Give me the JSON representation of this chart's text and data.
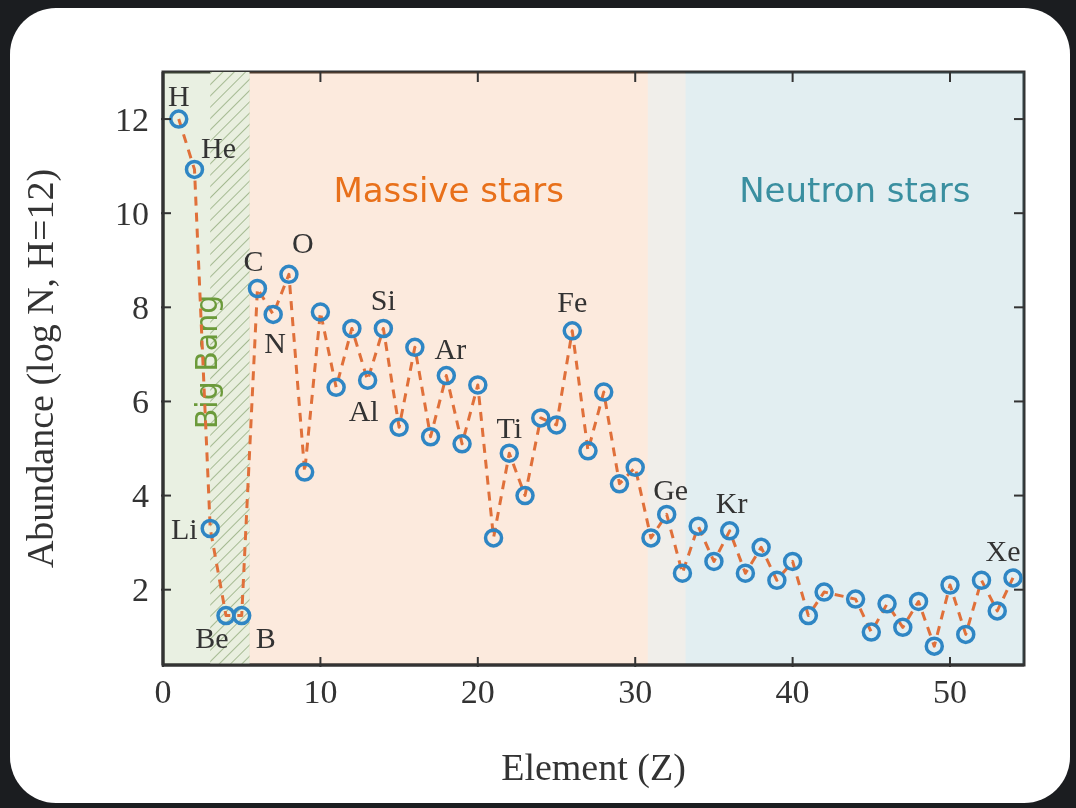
{
  "chart_data": {
    "type": "line",
    "xlabel": "Element (Z)",
    "ylabel": "Abundance (log N, H=12)",
    "x": [
      1,
      2,
      3,
      4,
      5,
      6,
      7,
      8,
      9,
      10,
      11,
      12,
      13,
      14,
      15,
      16,
      17,
      18,
      19,
      20,
      21,
      22,
      23,
      24,
      25,
      26,
      27,
      28,
      29,
      30,
      31,
      32,
      33,
      34,
      35,
      36,
      37,
      38,
      39,
      40,
      41,
      42,
      44,
      45,
      46,
      47,
      48,
      49,
      50,
      51,
      52,
      53,
      54
    ],
    "series": [
      {
        "type": "line",
        "color": "#e0703a",
        "line_style": "dashed",
        "marker": "none",
        "values": [
          12.0,
          10.93,
          3.3,
          1.45,
          1.45,
          8.4,
          7.85,
          8.7,
          4.5,
          7.9,
          6.3,
          7.55,
          6.45,
          7.55,
          5.45,
          7.15,
          5.25,
          6.55,
          5.1,
          6.35,
          3.1,
          4.9,
          4.0,
          5.65,
          5.5,
          7.5,
          4.95,
          6.2,
          4.25,
          4.6,
          3.1,
          3.6,
          2.35,
          3.35,
          2.6,
          3.25,
          2.35,
          2.9,
          2.2,
          2.6,
          1.45,
          1.95,
          1.8,
          1.1,
          1.7,
          1.2,
          1.75,
          0.8,
          2.1,
          1.05,
          2.2,
          1.55,
          2.25
        ]
      },
      {
        "type": "scatter",
        "color": "#2f86c4",
        "marker": "circle",
        "values": [
          12.0,
          10.93,
          3.3,
          1.45,
          1.45,
          8.4,
          7.85,
          8.7,
          4.5,
          7.9,
          6.3,
          7.55,
          6.45,
          7.55,
          5.45,
          7.15,
          5.25,
          6.55,
          5.1,
          6.35,
          3.1,
          4.9,
          4.0,
          5.65,
          5.5,
          7.5,
          4.95,
          6.2,
          4.25,
          4.6,
          3.1,
          3.6,
          2.35,
          3.35,
          2.6,
          3.25,
          2.35,
          2.9,
          2.2,
          2.6,
          1.45,
          1.95,
          1.8,
          1.1,
          1.7,
          1.2,
          1.75,
          0.8,
          2.1,
          1.05,
          2.2,
          1.55,
          2.25
        ]
      }
    ],
    "xlim": [
      0,
      54.7
    ],
    "xticks": [
      0,
      10,
      20,
      30,
      40,
      50
    ],
    "ylim": [
      0.4,
      13
    ],
    "yticks": [
      2,
      4,
      6,
      8,
      10,
      12
    ],
    "grid": false,
    "legend": false,
    "bands": [
      {
        "axis": "x",
        "from": 0,
        "to": 5.5,
        "label": "Big Bang",
        "color": "#6b9a3a"
      },
      {
        "axis": "x",
        "from": 3,
        "to": 5.5,
        "color": "#8fa878"
      },
      {
        "axis": "x",
        "from": 5.5,
        "to": 30.8,
        "label": "Massive stars",
        "color": "#e8701a"
      },
      {
        "axis": "x",
        "from": 30.8,
        "to": 33.2,
        "color": "#9c8a70"
      },
      {
        "axis": "x",
        "from": 33.2,
        "to": 54.7,
        "label": "Neutron stars",
        "color": "#3a8fa0"
      }
    ],
    "annotations": [
      {
        "text": "H",
        "x": 1,
        "y": 12.0
      },
      {
        "text": "He",
        "x": 2,
        "y": 10.93
      },
      {
        "text": "Li",
        "x": 3,
        "y": 3.3
      },
      {
        "text": "Be",
        "x": 4,
        "y": 1.45
      },
      {
        "text": "B",
        "x": 5,
        "y": 1.45
      },
      {
        "text": "C",
        "x": 6,
        "y": 8.4
      },
      {
        "text": "N",
        "x": 7,
        "y": 7.85
      },
      {
        "text": "O",
        "x": 8,
        "y": 8.7
      },
      {
        "text": "Si",
        "x": 14,
        "y": 7.55
      },
      {
        "text": "Al",
        "x": 13,
        "y": 6.45
      },
      {
        "text": "Ar",
        "x": 18,
        "y": 6.55
      },
      {
        "text": "Ti",
        "x": 22,
        "y": 4.9
      },
      {
        "text": "Fe",
        "x": 26,
        "y": 7.5
      },
      {
        "text": "Ge",
        "x": 32,
        "y": 3.6
      },
      {
        "text": "Kr",
        "x": 36,
        "y": 3.25
      },
      {
        "text": "Xe",
        "x": 54,
        "y": 2.25
      }
    ]
  }
}
